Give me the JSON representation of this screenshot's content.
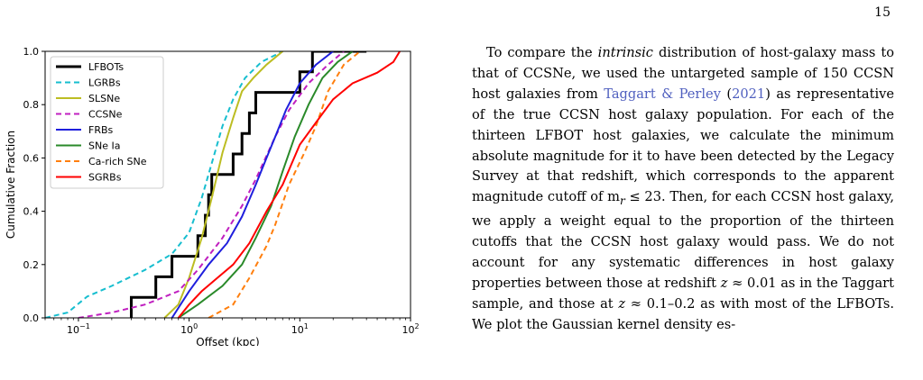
{
  "page_number": "15",
  "paragraph": {
    "t1": "To compare the ",
    "t_intrinsic": "intrinsic",
    "t2": " distribution of host-galaxy mass to that of CCSNe, we used the untargeted sample of 150 CCSN host galaxies from ",
    "cite_author": "Taggart & Perley",
    "t3": " (",
    "cite_year": "2021",
    "t4": ") as representative of the true CCSN host galaxy population. For each of the thirteen LFBOT host galaxies, we calculate the minimum absolute magnitude for it to have been detected by the Legacy Survey at that redshift, which corresponds to the apparent magnitude cutoff of m",
    "t_sub": "r",
    "t5": " ≤ 23. Then, for each CCSN host galaxy, we apply a weight equal to the proportion of the thirteen cutoffs that the CCSN host galaxy would pass. We do not account for any systematic differences in host galaxy properties between those at redshift ",
    "t_z1": "z",
    "t6": " ≈ 0.01 as in the Taggart sample, and those at ",
    "t_z2": "z",
    "t7": " ≈ 0.1–0.2 as with most of the LFBOTs. We plot the Gaussian kernel density es-"
  },
  "chart_data": {
    "type": "line",
    "xlabel": "Offset (kpc)",
    "ylabel": "Cumulative Fraction",
    "xscale": "log",
    "xlim": [
      0.05,
      100
    ],
    "ylim": [
      0,
      1.0
    ],
    "xticks": [
      {
        "v": 0.1,
        "base": "10",
        "exp": "−1"
      },
      {
        "v": 1,
        "base": "10",
        "exp": "0"
      },
      {
        "v": 10,
        "base": "10",
        "exp": "1"
      },
      {
        "v": 100,
        "base": "10",
        "exp": "2"
      }
    ],
    "yticks": [
      "0.0",
      "0.2",
      "0.4",
      "0.6",
      "0.8",
      "1.0"
    ],
    "legend_position": "upper-left",
    "series": [
      {
        "name": "LFBOTs",
        "color": "#000000",
        "dash": "",
        "width": 3,
        "points": [
          [
            0.3,
            0.0
          ],
          [
            0.3,
            0.077
          ],
          [
            0.5,
            0.077
          ],
          [
            0.5,
            0.154
          ],
          [
            0.7,
            0.154
          ],
          [
            0.7,
            0.231
          ],
          [
            1.2,
            0.231
          ],
          [
            1.2,
            0.308
          ],
          [
            1.4,
            0.308
          ],
          [
            1.4,
            0.385
          ],
          [
            1.5,
            0.385
          ],
          [
            1.5,
            0.462
          ],
          [
            1.6,
            0.462
          ],
          [
            1.6,
            0.538
          ],
          [
            2.5,
            0.538
          ],
          [
            2.5,
            0.615
          ],
          [
            3.0,
            0.615
          ],
          [
            3.0,
            0.692
          ],
          [
            3.5,
            0.692
          ],
          [
            3.5,
            0.769
          ],
          [
            4.0,
            0.769
          ],
          [
            4.0,
            0.846
          ],
          [
            10,
            0.846
          ],
          [
            10,
            0.923
          ],
          [
            13,
            0.923
          ],
          [
            13,
            1.0
          ],
          [
            40,
            1.0
          ]
        ]
      },
      {
        "name": "LGRBs",
        "color": "#17becf",
        "dash": "6,4",
        "width": 2,
        "points": [
          [
            0.05,
            0.0
          ],
          [
            0.08,
            0.02
          ],
          [
            0.12,
            0.08
          ],
          [
            0.2,
            0.12
          ],
          [
            0.4,
            0.18
          ],
          [
            0.7,
            0.24
          ],
          [
            1.0,
            0.32
          ],
          [
            1.3,
            0.45
          ],
          [
            1.6,
            0.58
          ],
          [
            2.0,
            0.72
          ],
          [
            2.5,
            0.82
          ],
          [
            3.2,
            0.9
          ],
          [
            4.5,
            0.96
          ],
          [
            7,
            1.0
          ]
        ]
      },
      {
        "name": "SLSNe",
        "color": "#bcbd22",
        "dash": "",
        "width": 2,
        "points": [
          [
            0.6,
            0.0
          ],
          [
            0.8,
            0.05
          ],
          [
            1.0,
            0.15
          ],
          [
            1.3,
            0.3
          ],
          [
            1.6,
            0.45
          ],
          [
            2.0,
            0.62
          ],
          [
            2.5,
            0.75
          ],
          [
            3.0,
            0.85
          ],
          [
            3.8,
            0.9
          ],
          [
            5,
            0.95
          ],
          [
            7,
            1.0
          ]
        ]
      },
      {
        "name": "CCSNe",
        "color": "#c020c0",
        "dash": "6,4",
        "width": 2,
        "points": [
          [
            0.1,
            0.0
          ],
          [
            0.2,
            0.02
          ],
          [
            0.4,
            0.05
          ],
          [
            0.8,
            0.1
          ],
          [
            1.2,
            0.18
          ],
          [
            2.0,
            0.3
          ],
          [
            3.0,
            0.42
          ],
          [
            4.0,
            0.52
          ],
          [
            6.0,
            0.68
          ],
          [
            8.0,
            0.78
          ],
          [
            12,
            0.88
          ],
          [
            18,
            0.95
          ],
          [
            25,
            1.0
          ]
        ]
      },
      {
        "name": "FRBs",
        "color": "#1f1fdd",
        "dash": "",
        "width": 2,
        "points": [
          [
            0.7,
            0.0
          ],
          [
            1.0,
            0.1
          ],
          [
            1.5,
            0.2
          ],
          [
            2.2,
            0.28
          ],
          [
            3.0,
            0.38
          ],
          [
            4.0,
            0.5
          ],
          [
            5.0,
            0.6
          ],
          [
            6.0,
            0.68
          ],
          [
            7.5,
            0.78
          ],
          [
            10,
            0.88
          ],
          [
            14,
            0.95
          ],
          [
            20,
            1.0
          ]
        ]
      },
      {
        "name": "SNe Ia",
        "color": "#2a8a2a",
        "dash": "",
        "width": 2,
        "points": [
          [
            0.8,
            0.0
          ],
          [
            1.2,
            0.05
          ],
          [
            2.0,
            0.12
          ],
          [
            3.0,
            0.2
          ],
          [
            4.0,
            0.3
          ],
          [
            5.5,
            0.42
          ],
          [
            7.0,
            0.55
          ],
          [
            9.0,
            0.68
          ],
          [
            12,
            0.8
          ],
          [
            16,
            0.9
          ],
          [
            22,
            0.96
          ],
          [
            30,
            1.0
          ]
        ]
      },
      {
        "name": "Ca-rich SNe",
        "color": "#ff7f0e",
        "dash": "6,4",
        "width": 2,
        "points": [
          [
            1.5,
            0.0
          ],
          [
            2.5,
            0.05
          ],
          [
            3.5,
            0.15
          ],
          [
            5.0,
            0.27
          ],
          [
            6.0,
            0.35
          ],
          [
            8.0,
            0.5
          ],
          [
            11,
            0.62
          ],
          [
            14,
            0.72
          ],
          [
            18,
            0.85
          ],
          [
            25,
            0.95
          ],
          [
            35,
            1.0
          ]
        ]
      },
      {
        "name": "SGRBs",
        "color": "#ff0000",
        "dash": "",
        "width": 2,
        "points": [
          [
            0.8,
            0.0
          ],
          [
            1.0,
            0.05
          ],
          [
            1.3,
            0.1
          ],
          [
            1.8,
            0.15
          ],
          [
            2.5,
            0.2
          ],
          [
            3.5,
            0.28
          ],
          [
            5.0,
            0.4
          ],
          [
            7.0,
            0.5
          ],
          [
            10,
            0.65
          ],
          [
            15,
            0.75
          ],
          [
            20,
            0.82
          ],
          [
            30,
            0.88
          ],
          [
            50,
            0.92
          ],
          [
            70,
            0.96
          ],
          [
            80,
            1.0
          ]
        ]
      }
    ]
  }
}
